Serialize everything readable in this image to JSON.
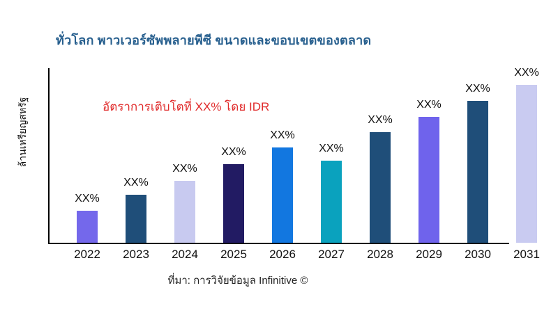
{
  "colors": {
    "background": "#ffffff",
    "title": "#275F8E",
    "annotation": "#E02A2A",
    "axis": "#000000",
    "labels": "#111111"
  },
  "chart_data": {
    "type": "bar",
    "title": "ทั่วโลก พาวเวอร์ซัพพลายพีซี ขนาดและขอบเขตของตลาด",
    "ylabel": "ล้านเหรียญสหรัฐ",
    "xlabel": "",
    "annotation": "อัตราการเติบโตที่ XX% โดย IDR",
    "source": "ที่มา: การวิจัยข้อมูล Infinitive ©",
    "categories": [
      "2022",
      "2023",
      "2024",
      "2025",
      "2026",
      "2027",
      "2028",
      "2029",
      "2030",
      "2031"
    ],
    "bar_labels": [
      "XX%",
      "XX%",
      "XX%",
      "XX%",
      "XX%",
      "XX%",
      "XX%",
      "XX%",
      "XX%",
      "XX%"
    ],
    "relative_heights": [
      46,
      69,
      89,
      113,
      137,
      118,
      159,
      181,
      204,
      227
    ],
    "bar_colors": [
      "#7468EB",
      "#1F4E79",
      "#C8CAF0",
      "#221B63",
      "#1277E0",
      "#0AA2BE",
      "#1F4E79",
      "#6F63EC",
      "#1F4E79",
      "#C9CBF1"
    ],
    "value_axis_ticks_visible": false,
    "grid": false,
    "legend": false
  }
}
